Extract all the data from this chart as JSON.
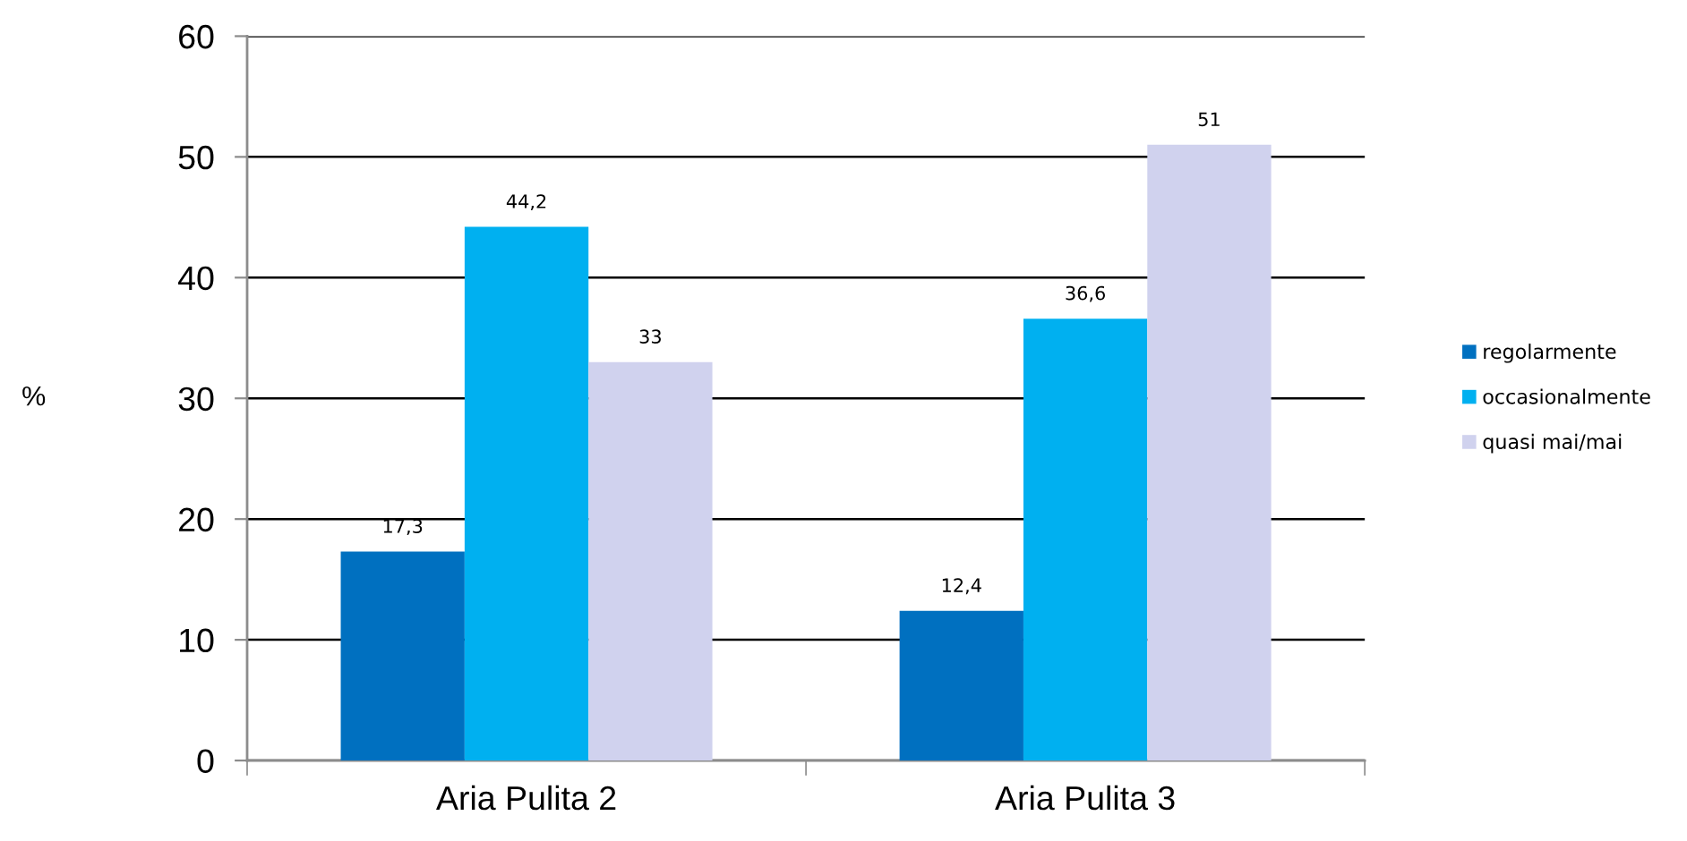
{
  "chart_data": {
    "type": "bar",
    "ylabel": "%",
    "categories": [
      "Aria Pulita 2",
      "Aria Pulita 3"
    ],
    "series": [
      {
        "name": "regolarmente",
        "color": "#0070c0",
        "values": [
          17.3,
          12.4
        ],
        "value_labels": [
          "17,3",
          "12,4"
        ]
      },
      {
        "name": "occasionalmente",
        "color": "#00b0f0",
        "values": [
          44.2,
          36.6
        ],
        "value_labels": [
          "44,2",
          "36,6"
        ]
      },
      {
        "name": "quasi mai/mai",
        "color": "#d0d2ee",
        "values": [
          33,
          51
        ],
        "value_labels": [
          "33",
          "51"
        ]
      }
    ],
    "ylim": [
      0,
      60
    ],
    "yticks": [
      0,
      10,
      20,
      30,
      40,
      50,
      60
    ],
    "grid": "y",
    "legend": "right"
  }
}
